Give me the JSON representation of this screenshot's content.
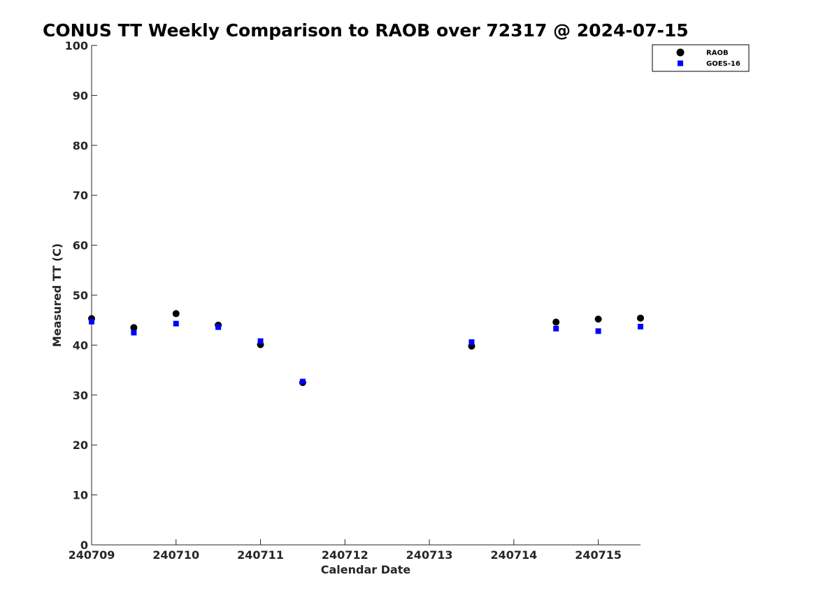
{
  "chart_data": {
    "type": "scatter",
    "title": "CONUS TT Weekly Comparison to RAOB over 72317 @ 2024-07-15",
    "xlabel": "Calendar Date",
    "ylabel": "Measured TT (C)",
    "xlim": [
      240709,
      240715.5
    ],
    "ylim": [
      0,
      100
    ],
    "xticks": [
      240709,
      240710,
      240711,
      240712,
      240713,
      240714,
      240715
    ],
    "xtick_labels": [
      "240709",
      "240710",
      "240711",
      "240712",
      "240713",
      "240714",
      "240715"
    ],
    "yticks": [
      0,
      10,
      20,
      30,
      40,
      50,
      60,
      70,
      80,
      90,
      100
    ],
    "ytick_labels": [
      "0",
      "10",
      "20",
      "30",
      "40",
      "50",
      "60",
      "70",
      "80",
      "90",
      "100"
    ],
    "grid": false,
    "legend_position": "top-right",
    "series": [
      {
        "name": "RAOB",
        "marker": "circle",
        "color": "#000000",
        "x": [
          240709,
          240709.5,
          240710,
          240710.5,
          240711,
          240711.5,
          240713.5,
          240714.5,
          240715,
          240715.5
        ],
        "y": [
          45.3,
          43.5,
          46.3,
          44.0,
          40.1,
          32.5,
          39.8,
          44.6,
          45.2,
          45.4
        ]
      },
      {
        "name": "GOES-16",
        "marker": "square",
        "color": "#0000ff",
        "x": [
          240709,
          240709.5,
          240710,
          240710.5,
          240711,
          240711.5,
          240713.5,
          240714.5,
          240715,
          240715.5
        ],
        "y": [
          44.7,
          42.5,
          44.3,
          43.6,
          40.8,
          32.7,
          40.6,
          43.3,
          42.8,
          43.7
        ]
      }
    ]
  }
}
